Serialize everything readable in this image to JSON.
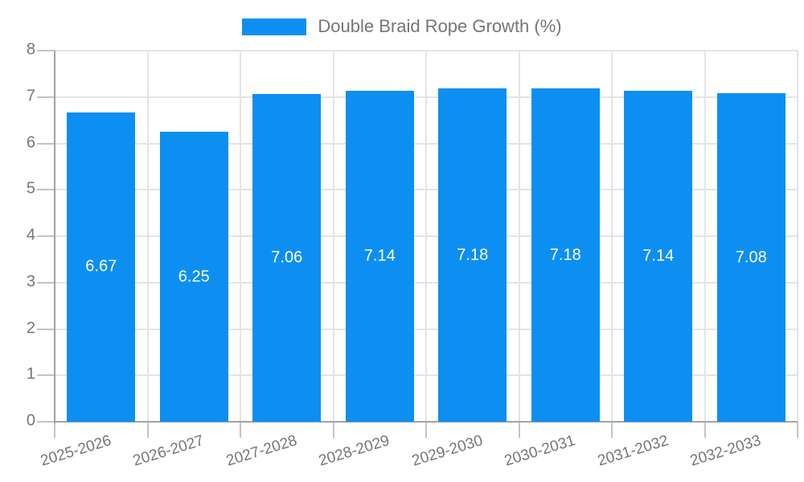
{
  "legend": {
    "label": "Double Braid Rope Growth (%)"
  },
  "chart_data": {
    "type": "bar",
    "title": "Double Braid Rope Growth (%)",
    "categories": [
      "2025-2026",
      "2026-2027",
      "2027-2028",
      "2028-2029",
      "2029-2030",
      "2030-2031",
      "2031-2032",
      "2032-2033"
    ],
    "values": [
      6.67,
      6.25,
      7.06,
      7.14,
      7.18,
      7.18,
      7.14,
      7.08
    ],
    "value_labels": [
      "6.67",
      "6.25",
      "7.06",
      "7.14",
      "7.18",
      "7.18",
      "7.14",
      "7.08"
    ],
    "yticks": [
      0,
      1,
      2,
      3,
      4,
      5,
      6,
      7,
      8
    ],
    "ylim": [
      0,
      8
    ],
    "xlabel": "",
    "ylabel": "",
    "grid": true,
    "legend_position": "top",
    "colors": {
      "bar": "#0d8ff2",
      "value_label": "#ffffff",
      "grid": "#e4e4e4",
      "axis": "#a3a3a3",
      "tick": "#c4c4c4",
      "tick_text": "#757575"
    }
  }
}
